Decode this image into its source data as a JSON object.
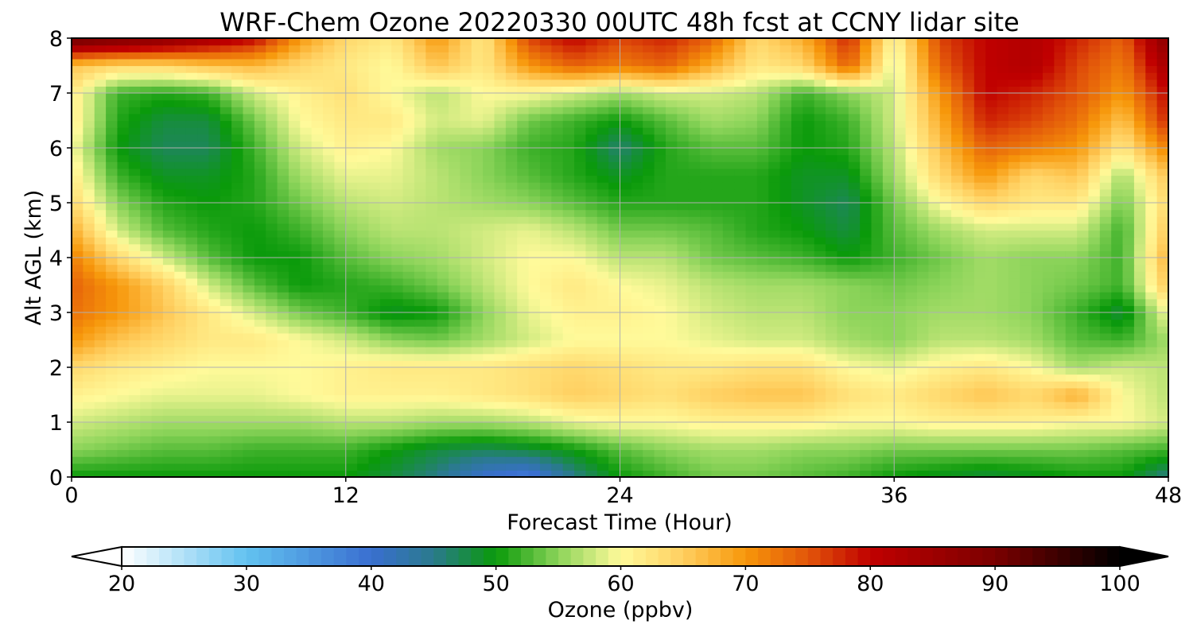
{
  "chart_data": {
    "type": "heatmap",
    "title": "WRF-Chem Ozone  20220330 00UTC 48h fcst at CCNY lidar site",
    "xlabel": "Forecast Time (Hour)",
    "ylabel": "Alt AGL (km)",
    "xlim": [
      0,
      48
    ],
    "ylim": [
      0,
      8
    ],
    "x_ticks": [
      0,
      12,
      24,
      36,
      48
    ],
    "y_ticks": [
      0,
      1,
      2,
      3,
      4,
      5,
      6,
      7,
      8
    ],
    "grid": true,
    "x": [
      0,
      2,
      4,
      6,
      8,
      10,
      12,
      14,
      16,
      18,
      20,
      22,
      24,
      26,
      28,
      30,
      32,
      34,
      36,
      38,
      40,
      42,
      44,
      46,
      48
    ],
    "y": [
      0,
      0.5,
      1,
      1.5,
      2,
      2.5,
      3,
      3.5,
      4,
      4.5,
      5,
      5.5,
      6,
      6.5,
      7,
      7.5,
      8
    ],
    "z_rows_by_altitude": [
      [
        50,
        50,
        50,
        50,
        50,
        50,
        50,
        48,
        45,
        40,
        38,
        45,
        50,
        52,
        54,
        54,
        53,
        52,
        50,
        49,
        48,
        49,
        50,
        50,
        45
      ],
      [
        55,
        54,
        53,
        53,
        52,
        52,
        52,
        50,
        48,
        47,
        48,
        50,
        53,
        55,
        56,
        56,
        55,
        55,
        54,
        54,
        54,
        54,
        54,
        53,
        52
      ],
      [
        58,
        57,
        56,
        56,
        56,
        56,
        57,
        57,
        56,
        56,
        57,
        59,
        60,
        60,
        61,
        61,
        61,
        60,
        60,
        61,
        61,
        61,
        60,
        60,
        58
      ],
      [
        61,
        60,
        59,
        59,
        59,
        60,
        61,
        61,
        61,
        62,
        63,
        65,
        64,
        63,
        65,
        66,
        66,
        63,
        62,
        64,
        66,
        64,
        68,
        60,
        57
      ],
      [
        64,
        62,
        61,
        60,
        60,
        60,
        61,
        62,
        62,
        62,
        63,
        64,
        63,
        62,
        62,
        63,
        63,
        60,
        59,
        61,
        62,
        60,
        56,
        58,
        57
      ],
      [
        70,
        66,
        64,
        62,
        62,
        60,
        58,
        55,
        54,
        56,
        58,
        60,
        60,
        60,
        59,
        58,
        58,
        56,
        55,
        57,
        57,
        56,
        53,
        52,
        56
      ],
      [
        73,
        70,
        66,
        62,
        58,
        54,
        52,
        49,
        50,
        55,
        59,
        61,
        61,
        60,
        58,
        57,
        57,
        55,
        55,
        56,
        56,
        55,
        52,
        48,
        60
      ],
      [
        74,
        70,
        65,
        58,
        53,
        50,
        51,
        52,
        54,
        57,
        60,
        62,
        60,
        59,
        57,
        56,
        56,
        55,
        54,
        55,
        56,
        55,
        54,
        52,
        66
      ],
      [
        72,
        64,
        58,
        53,
        50,
        50,
        53,
        55,
        56,
        58,
        60,
        60,
        57,
        57,
        54,
        53,
        52,
        50,
        52,
        54,
        56,
        55,
        55,
        52,
        68
      ],
      [
        68,
        58,
        53,
        51,
        50,
        52,
        55,
        57,
        57,
        58,
        59,
        57,
        54,
        54,
        53,
        51,
        50,
        48,
        53,
        56,
        58,
        58,
        58,
        52,
        66
      ],
      [
        64,
        55,
        51,
        50,
        51,
        54,
        57,
        58,
        57,
        56,
        55,
        53,
        51,
        51,
        51,
        51,
        49,
        47,
        54,
        60,
        64,
        62,
        62,
        54,
        64
      ],
      [
        62,
        52,
        49,
        49,
        51,
        56,
        59,
        59,
        57,
        55,
        53,
        51,
        49,
        51,
        51,
        51,
        49,
        49,
        56,
        64,
        70,
        64,
        66,
        56,
        66
      ],
      [
        60,
        50,
        47,
        47,
        52,
        58,
        61,
        60,
        56,
        55,
        52,
        51,
        46,
        51,
        53,
        53,
        50,
        51,
        57,
        66,
        74,
        72,
        70,
        62,
        72
      ],
      [
        62,
        51,
        48,
        48,
        54,
        60,
        62,
        62,
        58,
        59,
        54,
        52,
        50,
        53,
        56,
        55,
        50,
        52,
        58,
        68,
        78,
        76,
        73,
        66,
        78
      ],
      [
        62,
        52,
        51,
        52,
        58,
        61,
        63,
        60,
        57,
        60,
        60,
        58,
        56,
        58,
        58,
        57,
        52,
        55,
        58,
        70,
        80,
        78,
        75,
        70,
        80
      ],
      [
        66,
        64,
        64,
        66,
        67,
        64,
        62,
        60,
        66,
        62,
        70,
        74,
        72,
        74,
        68,
        62,
        64,
        74,
        58,
        74,
        80,
        82,
        76,
        72,
        84
      ],
      [
        92,
        90,
        88,
        84,
        80,
        70,
        64,
        62,
        70,
        62,
        76,
        80,
        76,
        78,
        74,
        64,
        68,
        78,
        60,
        76,
        80,
        82,
        78,
        74,
        88
      ]
    ],
    "colorbar": {
      "label": "Ozone  (ppbv)",
      "min": 20,
      "max": 100,
      "ticks": [
        20,
        30,
        40,
        50,
        60,
        70,
        80,
        90,
        100
      ],
      "extend": "both",
      "color_stops": [
        {
          "value": 20,
          "color": "#ffffff"
        },
        {
          "value": 30,
          "color": "#62c2f0"
        },
        {
          "value": 40,
          "color": "#3a6fd0"
        },
        {
          "value": 45,
          "color": "#2a7a8c"
        },
        {
          "value": 50,
          "color": "#0a9a0a"
        },
        {
          "value": 55,
          "color": "#8cd45a"
        },
        {
          "value": 60,
          "color": "#fffa9a"
        },
        {
          "value": 65,
          "color": "#ffcf60"
        },
        {
          "value": 70,
          "color": "#f7970a"
        },
        {
          "value": 75,
          "color": "#e2550a"
        },
        {
          "value": 80,
          "color": "#c00000"
        },
        {
          "value": 90,
          "color": "#7a0000"
        },
        {
          "value": 100,
          "color": "#000000"
        }
      ]
    }
  }
}
